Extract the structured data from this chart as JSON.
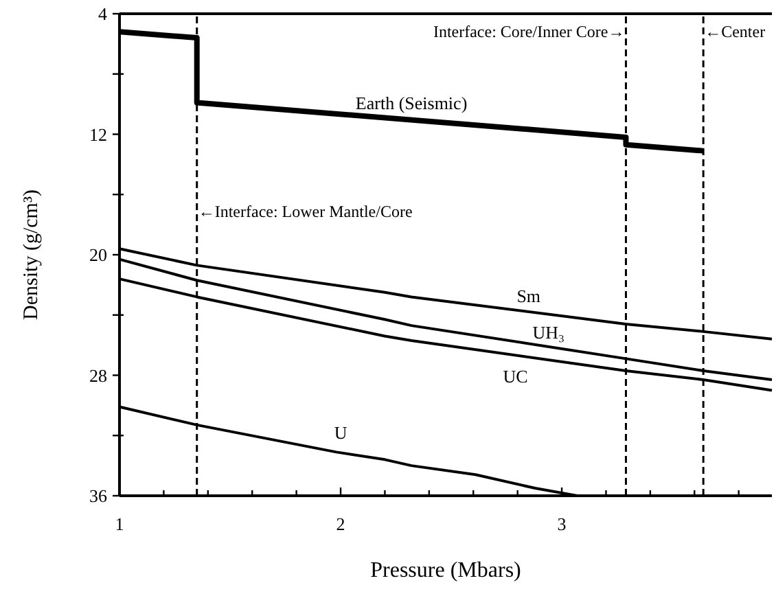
{
  "chart_data": {
    "type": "line",
    "xlabel": "Pressure (Mbars)",
    "ylabel": "Density (g/cm³)",
    "xlim": [
      1,
      3.95
    ],
    "ylim": [
      36,
      4
    ],
    "xticks": [
      1,
      {
        "value": 1.2,
        "label": null
      },
      {
        "value": 1.4,
        "label": null
      },
      {
        "value": 1.6,
        "label": null
      },
      {
        "value": 1.8,
        "label": null
      },
      2,
      {
        "value": 2.2,
        "label": null
      },
      {
        "value": 2.4,
        "label": null
      },
      {
        "value": 2.6,
        "label": null
      },
      {
        "value": 2.8,
        "label": null
      },
      3,
      {
        "value": 3.2,
        "label": null
      },
      {
        "value": 3.4,
        "label": null
      },
      {
        "value": 3.6,
        "label": null
      },
      {
        "value": 3.8,
        "label": null
      }
    ],
    "yticks": [
      4,
      {
        "value": 8,
        "label": null
      },
      12,
      {
        "value": 16,
        "label": null
      },
      20,
      {
        "value": 24,
        "label": null
      },
      28,
      {
        "value": 32,
        "label": null
      },
      36
    ],
    "grid": false,
    "marker": "none",
    "line_style": "solid",
    "series": [
      {
        "name": "Earth (Seismic)",
        "color": "#000000",
        "x": [
          1,
          1.35,
          1.35,
          3.29,
          3.29,
          3.64
        ],
        "values": [
          5.2,
          5.6,
          9.9,
          12.2,
          12.7,
          13.1
        ]
      },
      {
        "name": "Sm",
        "color": "#000000",
        "x": [
          1,
          1.35,
          2.2,
          2.32,
          3.29,
          3.64,
          3.95
        ],
        "values": [
          19.6,
          20.7,
          22.5,
          22.8,
          24.6,
          25.1,
          25.6
        ]
      },
      {
        "name": "UH₃",
        "color": "#000000",
        "x": [
          1,
          1.35,
          2.2,
          2.32,
          3.29,
          3.64,
          3.95
        ],
        "values": [
          20.3,
          21.7,
          24.3,
          24.7,
          26.9,
          27.7,
          28.3
        ]
      },
      {
        "name": "UC",
        "color": "#000000",
        "x": [
          1,
          1.35,
          2.2,
          2.32,
          3.29,
          3.64,
          3.95
        ],
        "values": [
          21.6,
          22.8,
          25.4,
          25.7,
          27.7,
          28.3,
          29.0
        ]
      },
      {
        "name": "U",
        "color": "#000000",
        "x": [
          1,
          1.35,
          1.98,
          2.2,
          2.32,
          2.61,
          2.88,
          3.07
        ],
        "values": [
          30.1,
          31.3,
          33.1,
          33.6,
          34.0,
          34.6,
          35.5,
          36
        ]
      }
    ],
    "ref_lines": [
      {
        "axis": "x",
        "value": 1.35,
        "label": "←Interface: Lower Mantle/Core",
        "line_style": "dashed",
        "color": "#000000"
      },
      {
        "axis": "x",
        "value": 3.29,
        "label": "Interface: Core/Inner Core→",
        "line_style": "dashed",
        "color": "#000000"
      },
      {
        "axis": "x",
        "value": 3.64,
        "label": "←Center",
        "line_style": "dashed",
        "color": "#000000"
      }
    ]
  }
}
